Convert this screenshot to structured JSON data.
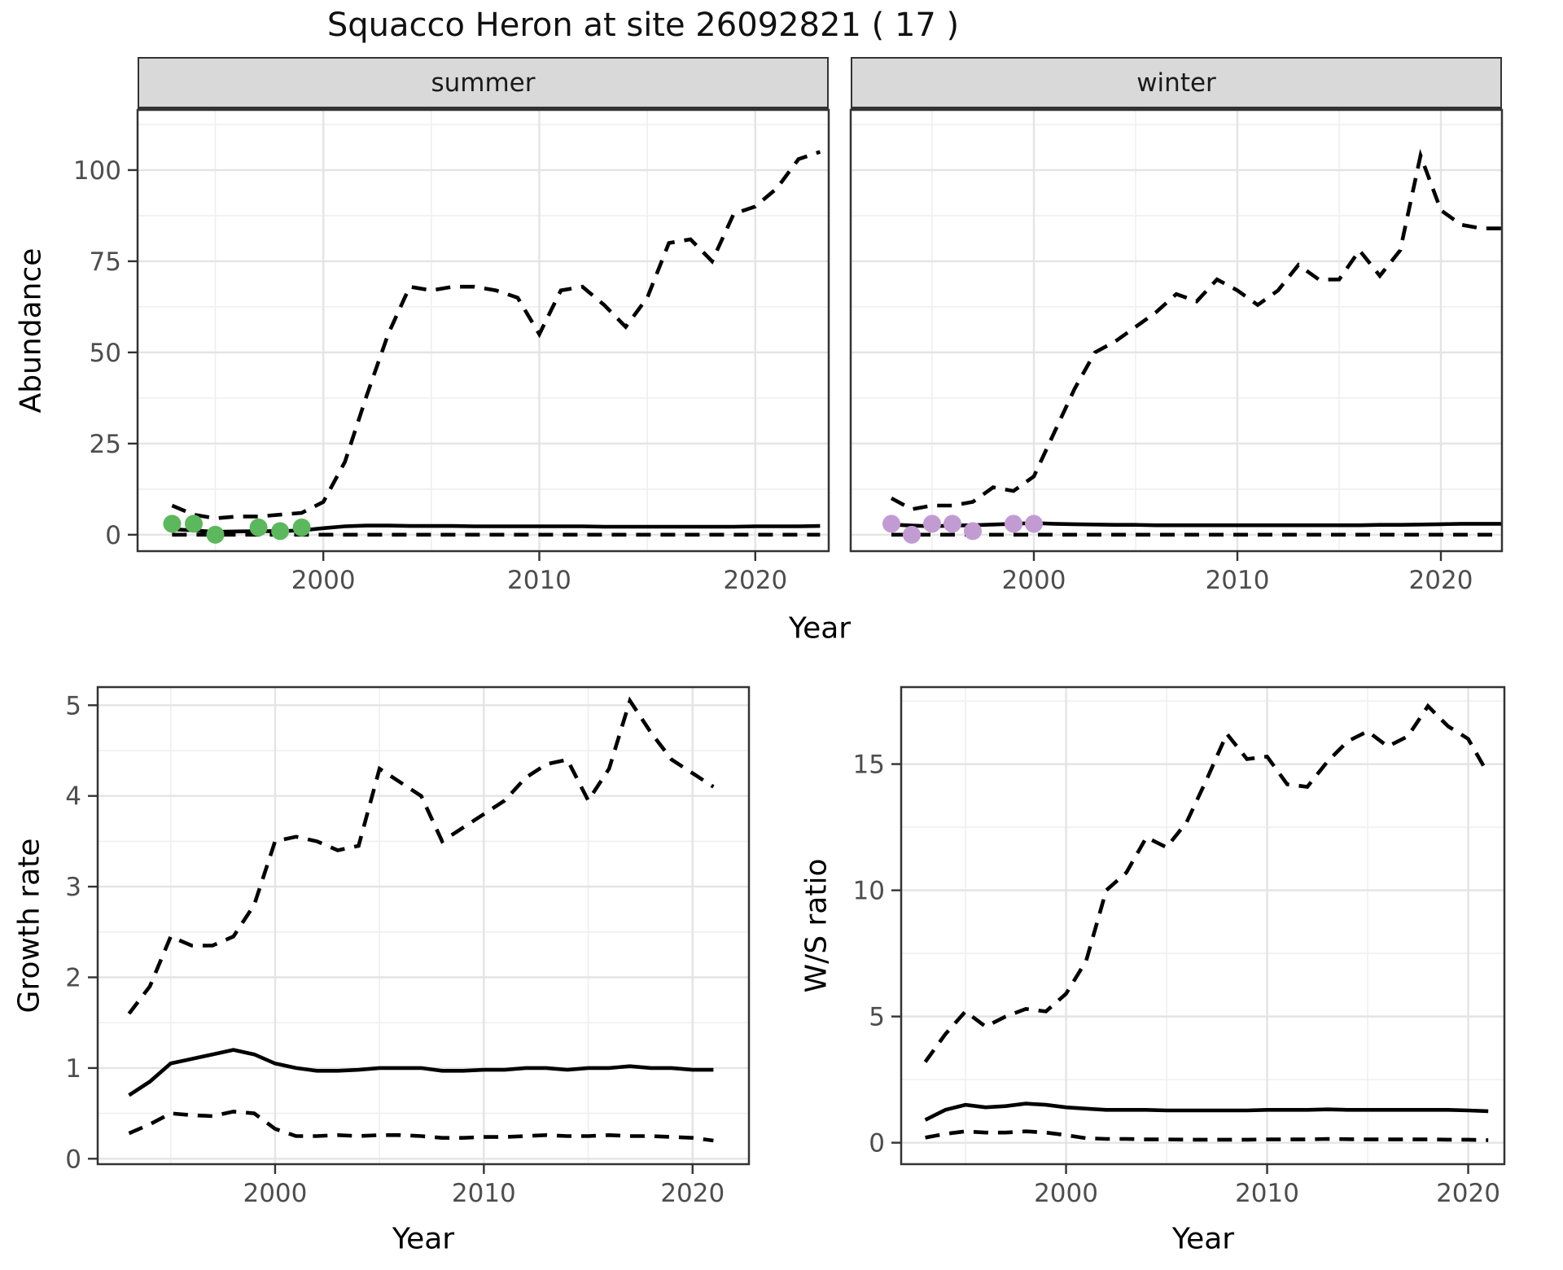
{
  "title": "Squacco Heron at site 26092821 ( 17 )",
  "facets": {
    "summer": "summer",
    "winter": "winter"
  },
  "labels": {
    "y_top": "Abundance",
    "x_top": "Year",
    "y_bottom_left": "Growth rate",
    "x_bottom_left": "Year",
    "y_bottom_right": "W/S ratio",
    "x_bottom_right": "Year"
  },
  "colors": {
    "summer_points": "#5CB85C",
    "winter_points": "#C39BD3",
    "line": "#000000",
    "grid_major": "#E4E4E4",
    "grid_minor": "#EFEFEF",
    "panel_border": "#333333",
    "tick_text": "#4D4D4D",
    "strip_bg": "#D9D9D9"
  },
  "chart_data": [
    {
      "name": "abundance-summer",
      "type": "line",
      "facet": "summer",
      "xlabel": "Year",
      "ylabel": "Abundance",
      "x_start": 1993,
      "xlim": [
        1991.4,
        2023.4
      ],
      "ylim": [
        -4.5,
        116.5
      ],
      "xticks": [
        2000,
        2010,
        2020
      ],
      "yticks": [
        0,
        25,
        50,
        75,
        100
      ],
      "x_minor": [
        1995,
        2005,
        2015
      ],
      "y_minor": [
        12.5,
        37.5,
        62.5,
        87.5,
        112.5
      ],
      "series": [
        {
          "name": "lower_95CI",
          "dash": true,
          "values": [
            0,
            0,
            0,
            0,
            0,
            0,
            0,
            0,
            0,
            0,
            0,
            0,
            0,
            0,
            0,
            0,
            0,
            0,
            0,
            0,
            0,
            0,
            0,
            0,
            0,
            0,
            0,
            0,
            0,
            0,
            0
          ]
        },
        {
          "name": "upper_95CI",
          "dash": true,
          "values": [
            8,
            5.5,
            4.5,
            5,
            5,
            5.5,
            6,
            9,
            20,
            38,
            55,
            68,
            67,
            68,
            68,
            67,
            65,
            55,
            67,
            68,
            63,
            57,
            65,
            80,
            81,
            75,
            88,
            90,
            95,
            103,
            105
          ]
        },
        {
          "name": "median",
          "dash": false,
          "values": [
            1.5,
            1.2,
            0.8,
            0.9,
            1,
            1,
            1.2,
            1.8,
            2.3,
            2.5,
            2.5,
            2.4,
            2.4,
            2.4,
            2.3,
            2.3,
            2.3,
            2.3,
            2.3,
            2.3,
            2.2,
            2.2,
            2.2,
            2.2,
            2.2,
            2.2,
            2.2,
            2.3,
            2.3,
            2.3,
            2.4
          ]
        }
      ],
      "points": {
        "color_key": "summer_points",
        "years": [
          1993,
          1994,
          1995,
          1997,
          1998,
          1999
        ],
        "values": [
          3,
          3,
          0,
          2,
          1,
          2
        ]
      }
    },
    {
      "name": "abundance-winter",
      "type": "line",
      "facet": "winter",
      "xlabel": "Year",
      "ylabel": "Abundance",
      "y_axis": false,
      "x_start": 1993,
      "xlim": [
        1991.0,
        2023.0
      ],
      "ylim": [
        -4.5,
        116.5
      ],
      "xticks": [
        2000,
        2010,
        2020
      ],
      "yticks": [
        0,
        25,
        50,
        75,
        100
      ],
      "x_minor": [
        1995,
        2005,
        2015
      ],
      "y_minor": [
        12.5,
        37.5,
        62.5,
        87.5,
        112.5
      ],
      "series": [
        {
          "name": "lower_95CI",
          "dash": true,
          "values": [
            0,
            0,
            0,
            0,
            0,
            0,
            0,
            0,
            0,
            0,
            0,
            0,
            0,
            0,
            0,
            0,
            0,
            0,
            0,
            0,
            0,
            0,
            0,
            0,
            0,
            0,
            0,
            0,
            0,
            0,
            0
          ]
        },
        {
          "name": "upper_95CI",
          "dash": true,
          "values": [
            10,
            7,
            8,
            8,
            9,
            13,
            12,
            16,
            28,
            40,
            50,
            53,
            57,
            61,
            66,
            64,
            70,
            67,
            63,
            67,
            74,
            70,
            70,
            78,
            71,
            78,
            104,
            89,
            85,
            84,
            84
          ]
        },
        {
          "name": "median",
          "dash": false,
          "values": [
            2.8,
            2.5,
            2.3,
            2.5,
            2.6,
            2.8,
            3,
            3.2,
            3,
            2.9,
            2.8,
            2.7,
            2.7,
            2.6,
            2.6,
            2.6,
            2.6,
            2.6,
            2.6,
            2.6,
            2.6,
            2.6,
            2.6,
            2.6,
            2.7,
            2.7,
            2.8,
            2.9,
            3,
            3,
            3
          ]
        }
      ],
      "points": {
        "color_key": "winter_points",
        "years": [
          1993,
          1994,
          1995,
          1996,
          1997,
          1999,
          2000
        ],
        "values": [
          3,
          0,
          3,
          3,
          1,
          3,
          3
        ]
      }
    },
    {
      "name": "growth-rate",
      "type": "line",
      "xlabel": "Year",
      "ylabel": "Growth rate",
      "x_start": 1993,
      "xlim": [
        1991.5,
        2022.7
      ],
      "ylim": [
        -0.06,
        5.2
      ],
      "xticks": [
        2000,
        2010,
        2020
      ],
      "yticks": [
        0,
        1,
        2,
        3,
        4,
        5
      ],
      "x_minor": [
        1995,
        2005,
        2015
      ],
      "y_minor": [
        0.5,
        1.5,
        2.5,
        3.5,
        4.5
      ],
      "series": [
        {
          "name": "lower_95CI",
          "dash": true,
          "values": [
            0.28,
            0.38,
            0.5,
            0.48,
            0.47,
            0.52,
            0.5,
            0.33,
            0.25,
            0.25,
            0.26,
            0.25,
            0.26,
            0.26,
            0.25,
            0.23,
            0.23,
            0.24,
            0.24,
            0.25,
            0.26,
            0.25,
            0.25,
            0.26,
            0.25,
            0.25,
            0.24,
            0.23,
            0.2
          ]
        },
        {
          "name": "upper_95CI",
          "dash": true,
          "values": [
            1.6,
            1.9,
            2.45,
            2.35,
            2.35,
            2.45,
            2.8,
            3.5,
            3.55,
            3.5,
            3.4,
            3.45,
            4.3,
            4.15,
            4.0,
            3.5,
            3.65,
            3.8,
            3.95,
            4.2,
            4.35,
            4.4,
            3.95,
            4.3,
            5.05,
            4.7,
            4.4,
            4.25,
            4.1
          ]
        },
        {
          "name": "median",
          "dash": false,
          "values": [
            0.7,
            0.85,
            1.05,
            1.1,
            1.15,
            1.2,
            1.15,
            1.05,
            1.0,
            0.97,
            0.97,
            0.98,
            1.0,
            1.0,
            1.0,
            0.97,
            0.97,
            0.98,
            0.98,
            1.0,
            1.0,
            0.98,
            1.0,
            1.0,
            1.02,
            1.0,
            1.0,
            0.98,
            0.98
          ]
        }
      ]
    },
    {
      "name": "ws-ratio",
      "type": "line",
      "xlabel": "Year",
      "ylabel": "W/S ratio",
      "x_start": 1993,
      "xlim": [
        1991.8,
        2021.8
      ],
      "ylim": [
        -0.85,
        18.05
      ],
      "xticks": [
        2000,
        2010,
        2020
      ],
      "yticks": [
        0,
        5,
        10,
        15
      ],
      "x_minor": [
        1995,
        2005,
        2015
      ],
      "y_minor": [
        2.5,
        7.5,
        12.5,
        17.5
      ],
      "series": [
        {
          "name": "lower_95CI",
          "dash": true,
          "values": [
            0.2,
            0.35,
            0.45,
            0.4,
            0.4,
            0.45,
            0.4,
            0.3,
            0.18,
            0.15,
            0.15,
            0.13,
            0.13,
            0.12,
            0.12,
            0.12,
            0.12,
            0.13,
            0.13,
            0.13,
            0.15,
            0.14,
            0.13,
            0.13,
            0.13,
            0.13,
            0.12,
            0.12,
            0.1
          ]
        },
        {
          "name": "upper_95CI",
          "dash": true,
          "values": [
            3.2,
            4.3,
            5.2,
            4.6,
            5.0,
            5.3,
            5.2,
            5.9,
            7.2,
            10.0,
            10.7,
            12.1,
            11.7,
            12.7,
            14.4,
            16.2,
            15.2,
            15.3,
            14.2,
            14.1,
            15.1,
            15.9,
            16.3,
            15.7,
            16.1,
            17.3,
            16.5,
            16.0,
            14.6
          ]
        },
        {
          "name": "median",
          "dash": false,
          "values": [
            0.9,
            1.3,
            1.5,
            1.4,
            1.45,
            1.55,
            1.5,
            1.4,
            1.35,
            1.3,
            1.3,
            1.3,
            1.28,
            1.28,
            1.28,
            1.28,
            1.28,
            1.3,
            1.3,
            1.3,
            1.32,
            1.3,
            1.3,
            1.3,
            1.3,
            1.3,
            1.3,
            1.28,
            1.25
          ]
        }
      ]
    }
  ]
}
